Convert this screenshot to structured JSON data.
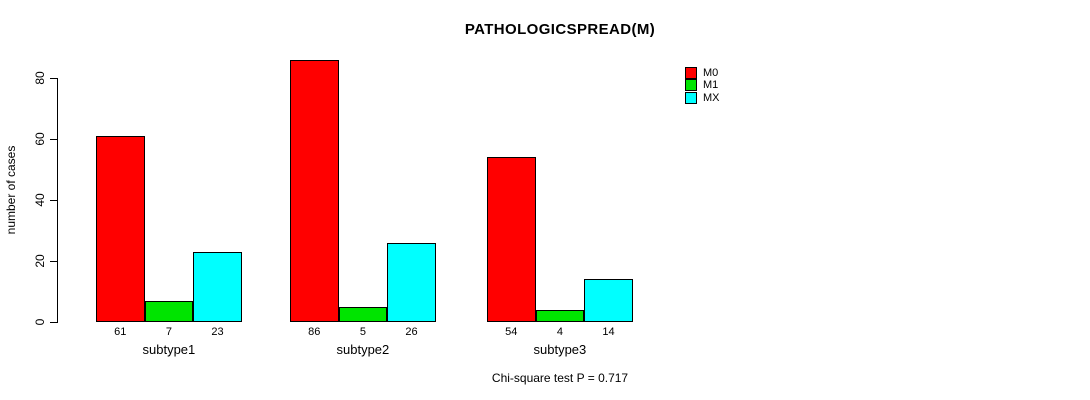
{
  "title": "PATHOLOGICSPREAD(M)",
  "y_axis": {
    "label": "number of cases",
    "ticks": [
      0,
      20,
      40,
      60,
      80
    ]
  },
  "footer": "Chi-square test P = 0.717",
  "legend": {
    "position": "top-right",
    "items": [
      {
        "label": "M0",
        "color": "#FF0000"
      },
      {
        "label": "M1",
        "color": "#00E400"
      },
      {
        "label": "MX",
        "color": "#00FFFF"
      }
    ]
  },
  "chart_data": {
    "type": "bar",
    "title": "PATHOLOGICSPREAD(M)",
    "xlabel": "",
    "ylabel": "number of cases",
    "categories": [
      "subtype1",
      "subtype2",
      "subtype3"
    ],
    "series": [
      {
        "name": "M0",
        "color": "#FF0000",
        "values": [
          61,
          86,
          54
        ]
      },
      {
        "name": "M1",
        "color": "#00E400",
        "values": [
          7,
          5,
          4
        ]
      },
      {
        "name": "MX",
        "color": "#00FFFF",
        "values": [
          23,
          26,
          14
        ]
      }
    ],
    "bar_value_labels": [
      [
        61,
        7,
        23
      ],
      [
        86,
        5,
        26
      ],
      [
        54,
        4,
        14
      ]
    ],
    "yticks": [
      0,
      20,
      40,
      60,
      80
    ],
    "ylim": [
      0,
      88
    ],
    "grid": false,
    "legend_position": "top-right",
    "annotation": "Chi-square test P = 0.717"
  }
}
